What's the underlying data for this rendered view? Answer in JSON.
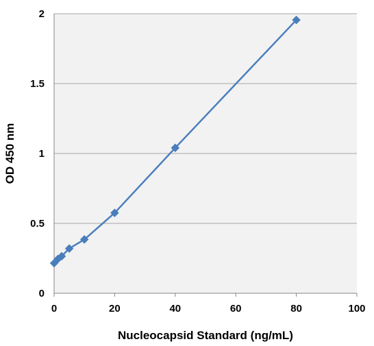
{
  "chart_data": {
    "type": "line",
    "title": "",
    "xlabel": "Nucleocapsid Standard (ng/mL)",
    "ylabel": "OD 450 nm",
    "xlim": [
      0,
      100
    ],
    "ylim": [
      0,
      2
    ],
    "xticks": [
      "0",
      "20",
      "40",
      "60",
      "80",
      "100"
    ],
    "yticks": [
      "0",
      "0.5",
      "1",
      "1.5",
      "2"
    ],
    "grid": "horizontal",
    "legend": "none",
    "series": [
      {
        "color": "#4a7ebb",
        "marker": "diamond",
        "x": [
          0,
          1.25,
          2.5,
          5,
          10,
          20,
          40,
          80
        ],
        "y": [
          0.215,
          0.245,
          0.265,
          0.32,
          0.385,
          0.575,
          1.04,
          1.955
        ]
      }
    ]
  }
}
